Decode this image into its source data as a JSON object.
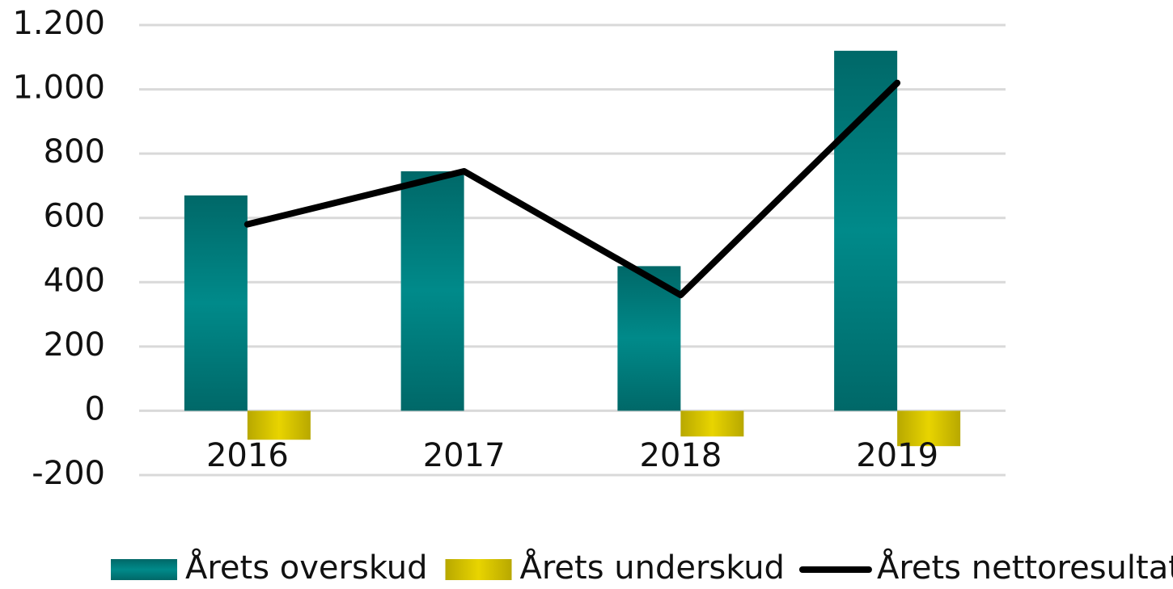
{
  "chart_data": {
    "type": "bar-line",
    "categories": [
      "2016",
      "2017",
      "2018",
      "2019"
    ],
    "series": [
      {
        "name": "Årets overskud",
        "type": "bar",
        "color": "#008080",
        "values": [
          670,
          745,
          450,
          1120
        ]
      },
      {
        "name": "Årets underskud",
        "type": "bar",
        "color": "#d9c400",
        "values": [
          -90,
          null,
          -80,
          -110
        ]
      },
      {
        "name": "Årets nettoresultat",
        "type": "line",
        "color": "#000000",
        "values": [
          580,
          745,
          360,
          1020
        ]
      }
    ],
    "ylim": [
      -200,
      1200
    ],
    "yticks": [
      -200,
      0,
      200,
      400,
      600,
      800,
      {
        "value": 1000,
        "label": "1.000"
      },
      {
        "value": 1200,
        "label": "1.200"
      }
    ],
    "grid": true,
    "legend": "bottom"
  }
}
